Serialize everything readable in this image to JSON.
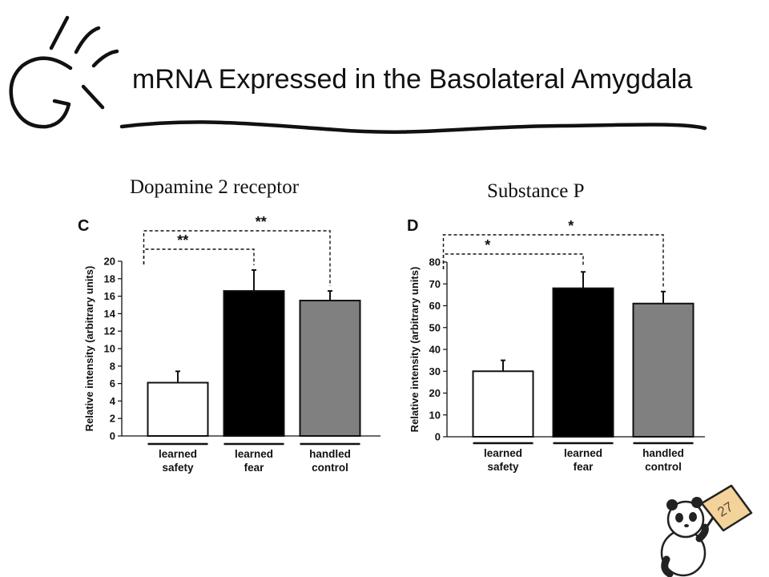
{
  "slide": {
    "title": "mRNA Expressed in the Basolateral Amygdala",
    "page_number": "27"
  },
  "chart_data": [
    {
      "type": "bar",
      "panel": "C",
      "title": "Dopamine 2 receptor",
      "ylabel": "Relative intensity (arbitrary units)",
      "xlabel": "",
      "categories": [
        [
          "learned",
          "safety"
        ],
        [
          "learned",
          "fear"
        ],
        [
          "handled",
          "control"
        ]
      ],
      "values": [
        6.1,
        16.6,
        15.5
      ],
      "errors": [
        1.3,
        2.4,
        1.1
      ],
      "bar_colors": [
        "#ffffff",
        "#000000",
        "#808080"
      ],
      "ylim": [
        0,
        20
      ],
      "yticks": [
        0,
        2,
        4,
        6,
        8,
        10,
        12,
        14,
        16,
        18,
        20
      ],
      "significance": [
        {
          "from": 0,
          "to": 1,
          "label": "**"
        },
        {
          "from": 0,
          "to": 2,
          "label": "**"
        }
      ],
      "grid": false
    },
    {
      "type": "bar",
      "panel": "D",
      "title": "Substance P",
      "ylabel": "Relative intensity (arbitrary units)",
      "xlabel": "",
      "categories": [
        [
          "learned",
          "safety"
        ],
        [
          "learned",
          "fear"
        ],
        [
          "handled",
          "control"
        ]
      ],
      "values": [
        30,
        68,
        61
      ],
      "errors": [
        5,
        7.5,
        5.5
      ],
      "bar_colors": [
        "#ffffff",
        "#000000",
        "#808080"
      ],
      "ylim": [
        0,
        80
      ],
      "yticks": [
        0,
        10,
        20,
        30,
        40,
        50,
        60,
        70,
        80
      ],
      "significance": [
        {
          "from": 0,
          "to": 1,
          "label": "*"
        },
        {
          "from": 0,
          "to": 2,
          "label": "*"
        }
      ],
      "grid": false
    }
  ]
}
